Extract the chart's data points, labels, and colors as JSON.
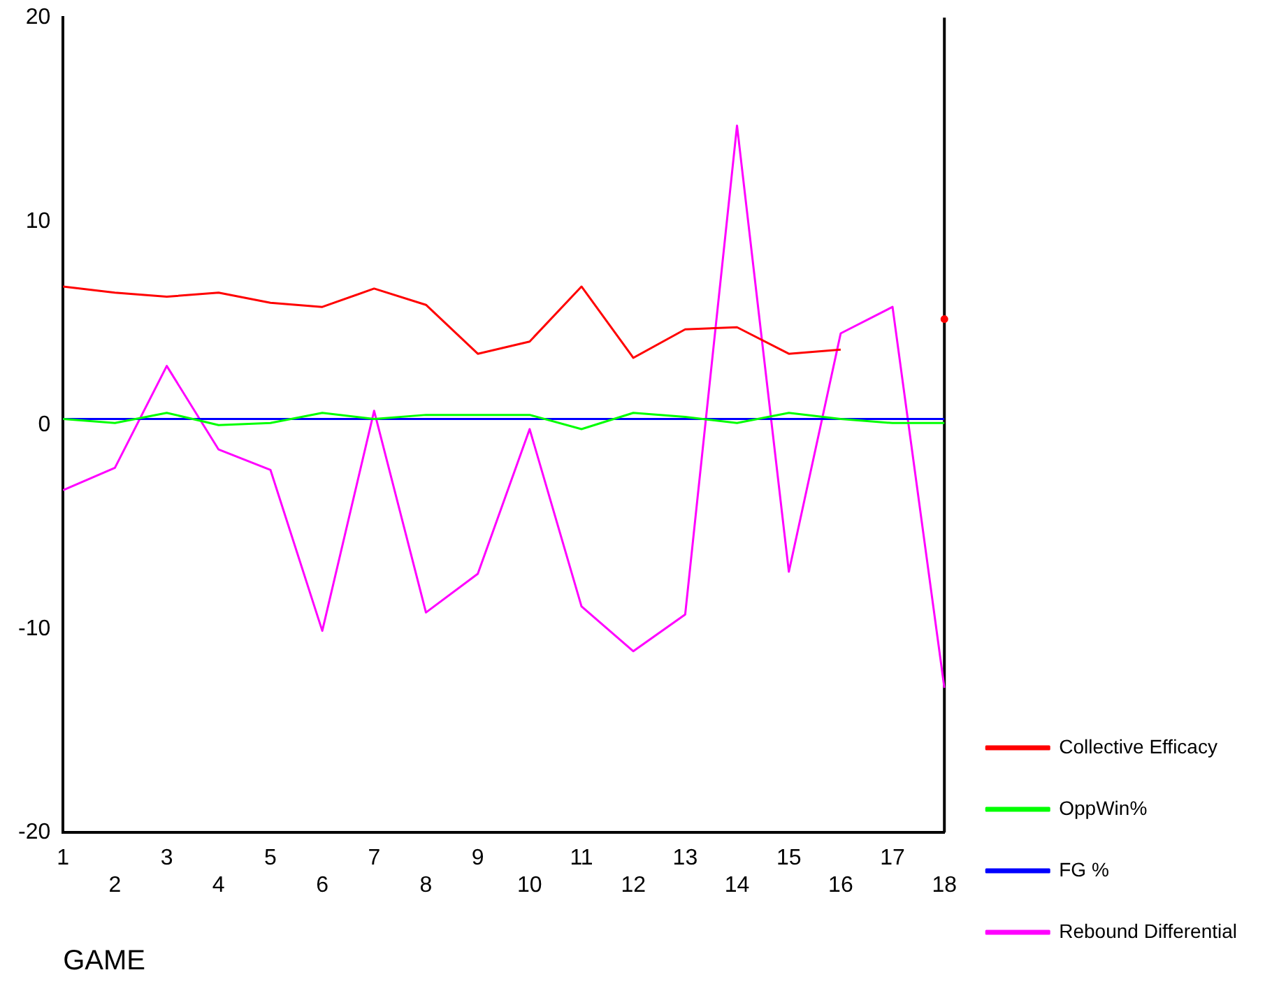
{
  "chart_data": {
    "type": "line",
    "xlabel": "GAME",
    "categories": [
      "1",
      "2",
      "3",
      "4",
      "5",
      "6",
      "7",
      "8",
      "9",
      "10",
      "11",
      "12",
      "13",
      "14",
      "15",
      "16",
      "17",
      "18"
    ],
    "series": [
      {
        "name": "Collective Efficacy",
        "color": "#ff0000",
        "values": [
          6.8,
          6.5,
          6.3,
          6.5,
          6.0,
          5.8,
          6.7,
          5.9,
          3.5,
          4.1,
          6.8,
          3.3,
          4.7,
          4.8,
          3.5,
          3.7,
          null,
          5.2
        ]
      },
      {
        "name": "OppWin%",
        "color": "#00ff00",
        "values": [
          0.3,
          0.1,
          0.6,
          0.0,
          0.1,
          0.6,
          0.3,
          0.5,
          0.5,
          0.5,
          -0.2,
          0.6,
          0.4,
          0.1,
          0.6,
          0.3,
          0.1,
          0.1
        ]
      },
      {
        "name": "FG %",
        "color": "#0000ff",
        "values": [
          0.3,
          0.3,
          0.3,
          0.3,
          0.3,
          0.3,
          0.3,
          0.3,
          0.3,
          0.3,
          0.3,
          0.3,
          0.3,
          0.3,
          0.3,
          0.3,
          0.3,
          0.3
        ]
      },
      {
        "name": "Rebound Differential",
        "color": "#ff00ff",
        "values": [
          -3.2,
          -2.1,
          2.9,
          -1.2,
          -2.2,
          -10.1,
          0.7,
          -9.2,
          -7.3,
          -0.2,
          -8.9,
          -11.1,
          -9.3,
          14.7,
          -7.2,
          4.5,
          5.8,
          -12.9
        ]
      }
    ],
    "ylim": [
      -20,
      20
    ],
    "yticks": [
      -20,
      -10,
      0,
      10,
      20
    ],
    "grid": false,
    "legend": "right",
    "marker": "none",
    "line_style": "solid"
  }
}
